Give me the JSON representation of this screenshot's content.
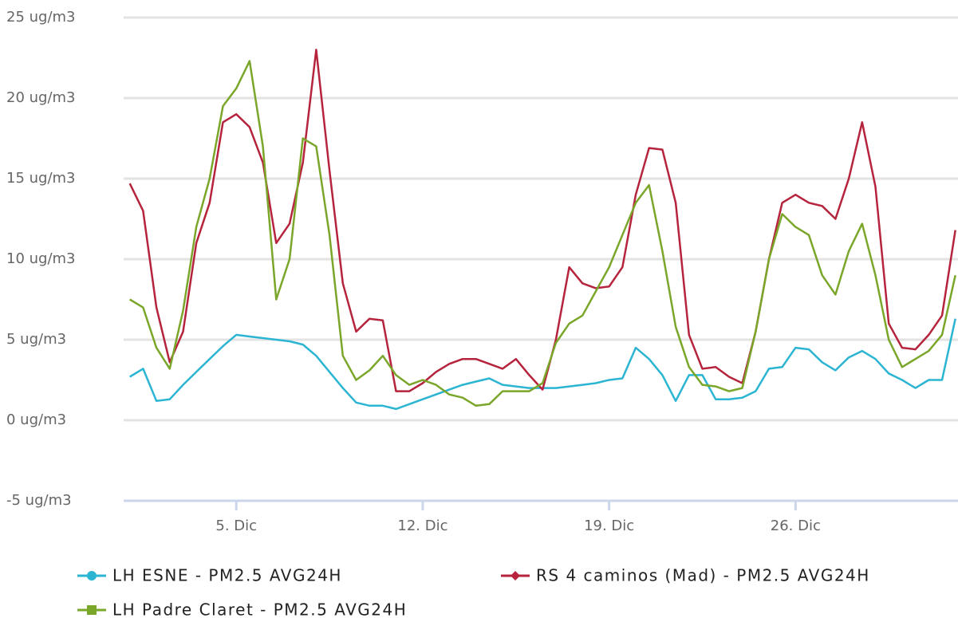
{
  "chart_data": {
    "type": "line",
    "x": [
      1,
      1.5,
      2,
      2.5,
      3,
      3.5,
      4,
      4.5,
      5,
      5.5,
      6,
      6.5,
      7,
      7.5,
      8,
      8.5,
      9,
      9.5,
      10,
      10.5,
      11,
      11.5,
      12,
      12.5,
      13,
      13.5,
      14,
      14.5,
      15,
      15.5,
      16,
      16.5,
      17,
      17.5,
      18,
      18.5,
      19,
      19.5,
      20,
      20.5,
      21,
      21.5,
      22,
      22.5,
      23,
      23.5,
      24,
      24.5,
      25,
      25.5,
      26,
      26.5,
      27,
      27.5,
      28,
      28.5,
      29,
      29.5,
      30,
      30.5,
      31,
      31.5,
      32
    ],
    "series": [
      {
        "name": "LH ESNE - PM2.5 AVG24H",
        "color": "#2bb5d2",
        "marker": "circle",
        "values": [
          2.7,
          3.2,
          1.2,
          1.3,
          2.2,
          3.0,
          3.8,
          4.6,
          5.3,
          5.2,
          5.1,
          5.0,
          4.9,
          4.7,
          4.0,
          3.0,
          2.0,
          1.1,
          0.9,
          0.9,
          0.7,
          1.0,
          1.3,
          1.6,
          1.9,
          2.2,
          2.4,
          2.6,
          2.2,
          2.1,
          2.0,
          2.0,
          2.0,
          2.1,
          2.2,
          2.3,
          2.5,
          2.6,
          4.5,
          3.8,
          2.8,
          1.2,
          2.8,
          2.8,
          1.3,
          1.3,
          1.4,
          1.8,
          3.2,
          3.3,
          4.5,
          4.4,
          3.6,
          3.1,
          3.9,
          4.3,
          3.8,
          2.9,
          2.5,
          2.0,
          2.5,
          2.5,
          6.3
        ]
      },
      {
        "name": "RS 4 caminos (Mad) - PM2.5 AVG24H",
        "color": "#b5243c",
        "marker": "diamond",
        "values": [
          14.7,
          13.0,
          7.0,
          3.6,
          5.5,
          11.0,
          13.5,
          18.5,
          19.0,
          18.2,
          16.0,
          11.0,
          12.2,
          16.0,
          23.0,
          15.5,
          8.5,
          5.5,
          6.3,
          6.2,
          1.8,
          1.8,
          2.3,
          3.0,
          3.5,
          3.8,
          3.8,
          3.5,
          3.2,
          3.8,
          2.8,
          1.9,
          5.0,
          9.5,
          8.5,
          8.2,
          8.3,
          9.5,
          14.0,
          16.9,
          16.8,
          13.5,
          5.3,
          3.2,
          3.3,
          2.7,
          2.3,
          5.5,
          10.0,
          13.5,
          14.0,
          13.5,
          13.3,
          12.5,
          15.0,
          18.5,
          14.5,
          6.0,
          4.5,
          4.4,
          5.3,
          6.5,
          11.8
        ]
      },
      {
        "name": "LH Padre Claret - PM2.5 AVG24H",
        "color": "#7aa62a",
        "marker": "square",
        "values": [
          7.5,
          7.0,
          4.5,
          3.2,
          6.8,
          12.0,
          15.0,
          19.5,
          20.6,
          22.3,
          17.0,
          7.5,
          10.0,
          17.5,
          17.0,
          11.5,
          4.0,
          2.5,
          3.1,
          4.0,
          2.8,
          2.2,
          2.5,
          2.2,
          1.6,
          1.4,
          0.9,
          1.0,
          1.8,
          1.8,
          1.8,
          2.3,
          4.8,
          6.0,
          6.5,
          8.0,
          9.5,
          11.5,
          13.5,
          14.6,
          10.5,
          5.8,
          3.3,
          2.2,
          2.1,
          1.8,
          2.0,
          5.5,
          10.0,
          12.8,
          12.0,
          11.5,
          9.0,
          7.8,
          10.5,
          12.2,
          9.0,
          5.0,
          3.3,
          3.8,
          4.3,
          5.3,
          9.0
        ]
      }
    ],
    "xlim": [
      0.77,
      32.1
    ],
    "xticks": [
      {
        "value": 5,
        "label": "5. Dic"
      },
      {
        "value": 12,
        "label": "12. Dic"
      },
      {
        "value": 19,
        "label": "19. Dic"
      },
      {
        "value": 26,
        "label": "26. Dic"
      }
    ],
    "ylim": [
      -5,
      25
    ],
    "yticks": [
      {
        "value": -5,
        "label": "-5 ug/m3"
      },
      {
        "value": 0,
        "label": "0 ug/m3"
      },
      {
        "value": 5,
        "label": "5 ug/m3"
      },
      {
        "value": 10,
        "label": "10 ug/m3"
      },
      {
        "value": 15,
        "label": "15 ug/m3"
      },
      {
        "value": 20,
        "label": "20 ug/m3"
      },
      {
        "value": 25,
        "label": "25 ug/m3"
      }
    ],
    "grid": true
  }
}
